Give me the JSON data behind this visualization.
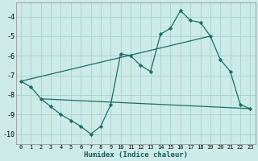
{
  "xlabel": "Humidex (Indice chaleur)",
  "background_color": "#cceae8",
  "grid_color": "#aad4d0",
  "line_color": "#1a6e64",
  "xlim_min": -0.5,
  "xlim_max": 23.5,
  "ylim_min": -10.5,
  "ylim_max": -3.3,
  "yticks": [
    -10,
    -9,
    -8,
    -7,
    -6,
    -5,
    -4
  ],
  "xticks": [
    0,
    1,
    2,
    3,
    4,
    5,
    6,
    7,
    8,
    9,
    10,
    11,
    12,
    13,
    14,
    15,
    16,
    17,
    18,
    19,
    20,
    21,
    22,
    23
  ],
  "curve1_x": [
    0,
    1,
    2,
    3,
    4,
    5,
    6,
    7,
    8,
    9,
    10,
    11,
    12,
    13,
    14,
    15,
    16,
    17,
    18,
    19,
    20,
    21,
    22,
    23
  ],
  "curve1_y": [
    -7.3,
    -7.6,
    -8.2,
    -8.6,
    -9.0,
    -9.3,
    -9.6,
    -10.0,
    -9.6,
    -8.5,
    -5.9,
    -6.0,
    -6.5,
    -6.8,
    -4.9,
    -4.6,
    -3.7,
    -4.2,
    -4.3,
    -5.0,
    -6.2,
    -6.8,
    -8.5,
    -8.7
  ],
  "line2_x": [
    2,
    23
  ],
  "line2_y": [
    -8.2,
    -8.7
  ],
  "line3_x": [
    0,
    19
  ],
  "line3_y": [
    -7.3,
    -5.0
  ]
}
